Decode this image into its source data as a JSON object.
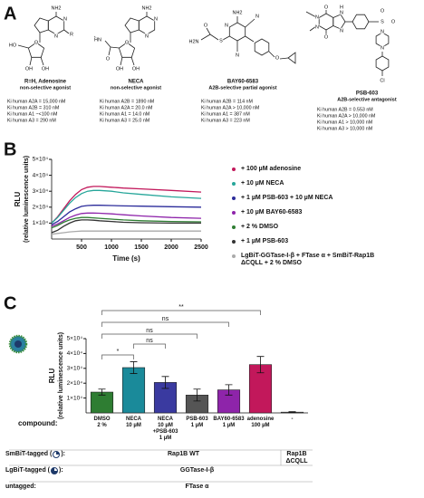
{
  "panel_labels": [
    "A",
    "B",
    "C"
  ],
  "compounds": [
    {
      "name": "R=H, Adenosine",
      "class": "non-selective agonist",
      "ki": [
        "Ki human A2A = 15,000 nM",
        "Ki human A2B = 310 nM",
        "Ki human A1 ~<100 nM",
        "Ki human A3 = 290 nM"
      ],
      "atoms": [
        "NH2",
        "N",
        "N",
        "R",
        "O",
        "HO",
        "OH",
        "OH"
      ]
    },
    {
      "name": "NECA",
      "class": "non-selective agonist",
      "ki": [
        "Ki human A2B = 1890 nM",
        "Ki human A2A = 20.0 nM",
        "Ki human A1 = 14.0 nM",
        "Ki human A3 = 25.0 nM"
      ],
      "atoms": [
        "NH2",
        "N",
        "N",
        "HN",
        "O",
        "O",
        "OH",
        "OH"
      ]
    },
    {
      "name": "BAY60-6583",
      "class": "A2B-selective partial agonist",
      "ki": [
        "Ki human A2B = 114 nM",
        "Ki human A2A > 10,000 nM",
        "Ki human A1 = 387 nM",
        "Ki human A3 = 223 nM"
      ],
      "atoms": [
        "NH2",
        "N",
        "H2N",
        "O",
        "S",
        "N",
        "N",
        "O"
      ]
    },
    {
      "name": "PSB-603",
      "class": "A2B-selective antagonist",
      "ki": [
        "Ki human A2B = 0.553 nM",
        "Ki human A2A > 10,000 nM",
        "Ki human A1 > 10,000 nM",
        "Ki human A3 > 10,000 nM"
      ],
      "atoms": [
        "O",
        "N",
        "N",
        "O",
        "N",
        "H",
        "N",
        "O",
        "S",
        "O",
        "N",
        "N",
        "Cl"
      ]
    }
  ],
  "chart_data": [
    {
      "type": "line",
      "ylabel": "RLU",
      "ylabel_sub": "(relative luminescence units)",
      "xlabel": "Time (s)",
      "x": [
        0,
        100,
        200,
        300,
        400,
        500,
        600,
        700,
        800,
        1000,
        1200,
        1500,
        2000,
        2500
      ],
      "xlim": [
        0,
        2500
      ],
      "xticks": [
        500,
        1000,
        1500,
        2000,
        2500
      ],
      "ylim": [
        0,
        50000
      ],
      "yticks": [
        {
          "value": 10000,
          "label": "1×10⁴"
        },
        {
          "value": 20000,
          "label": "2×10⁴"
        },
        {
          "value": 30000,
          "label": "3×10⁴"
        },
        {
          "value": 40000,
          "label": "4×10⁴"
        },
        {
          "value": 50000,
          "label": "5×10⁴"
        }
      ],
      "series": [
        {
          "name": "+ 100 µM adenosine",
          "color": "#c2185b",
          "values": [
            10000,
            14000,
            19000,
            24000,
            28000,
            31000,
            32500,
            33000,
            33000,
            32500,
            32000,
            31500,
            30500,
            29500
          ]
        },
        {
          "name": "+ 10 µM NECA",
          "color": "#26a69a",
          "values": [
            10000,
            13500,
            18000,
            22500,
            26000,
            28500,
            30000,
            30500,
            30500,
            30000,
            29000,
            28000,
            26500,
            25500
          ]
        },
        {
          "name": "+ 1 µM PSB-603 + 10 µM NECA",
          "color": "#2b2b9a",
          "values": [
            9000,
            11000,
            14000,
            17000,
            19000,
            20500,
            21000,
            21200,
            21200,
            21000,
            20800,
            20600,
            20300,
            20000
          ]
        },
        {
          "name": "+ 10 µM BAY60-6583",
          "color": "#8e24aa",
          "values": [
            8000,
            9500,
            11500,
            13500,
            15000,
            16000,
            16300,
            16300,
            16200,
            15800,
            15200,
            14500,
            13500,
            13000
          ]
        },
        {
          "name": "+ 2 % DMSO",
          "color": "#2e7d32",
          "values": [
            7000,
            8500,
            10500,
            12000,
            13000,
            13500,
            13500,
            13300,
            13000,
            12500,
            12000,
            11500,
            11000,
            10800
          ]
        },
        {
          "name": "+ 1 µM PSB-603",
          "color": "#333333",
          "values": [
            4000,
            5500,
            8000,
            10000,
            11500,
            12000,
            12000,
            11800,
            11500,
            11000,
            10500,
            10200,
            10000,
            10000
          ]
        },
        {
          "name": "LgBiT-GGTase-I-β + FTase α + SmBiT-Rap1B ΔCQLL + 2 % DMSO",
          "color": "#aaaaaa",
          "values": [
            3000,
            3500,
            4000,
            4500,
            4800,
            5000,
            5000,
            5000,
            5000,
            5000,
            5000,
            5000,
            5000,
            5000
          ]
        }
      ]
    },
    {
      "type": "bar",
      "ylabel": "RLU",
      "ylabel_sub": "(relative luminescence units)",
      "xlabel": "compound:",
      "categories": [
        "DMSO\n2 %",
        "NECA\n10 µM",
        "NECA\n10 µM\n+PSB-603\n1 µM",
        "PSB-603\n1 µM",
        "BAY60-6583\n1 µM",
        "adenosine\n100 µM",
        "-"
      ],
      "values": [
        14000,
        30500,
        20500,
        12000,
        15500,
        32500,
        500
      ],
      "errors": [
        2000,
        4000,
        4000,
        4000,
        3500,
        5500,
        300
      ],
      "colors": [
        "#2e7d32",
        "#1a8a9a",
        "#3a3aa0",
        "#555555",
        "#8e24aa",
        "#c2185b",
        "#777777"
      ],
      "ylim": [
        0,
        50000
      ],
      "yticks": [
        {
          "value": 10000,
          "label": "1×10⁴"
        },
        {
          "value": 20000,
          "label": "2×10⁴"
        },
        {
          "value": 30000,
          "label": "3×10⁴"
        },
        {
          "value": 40000,
          "label": "4×10⁴"
        },
        {
          "value": 50000,
          "label": "5×10⁴"
        }
      ],
      "annotations": [
        "**",
        "ns",
        "ns",
        "ns",
        "*"
      ]
    }
  ],
  "assay_table": {
    "rows": [
      {
        "label": "SmBiT-tagged (",
        "label_end": "):",
        "values": [
          "Rap1B WT",
          "Rap1B\nΔCQLL"
        ]
      },
      {
        "label": "LgBiT-tagged (",
        "label_end": "):",
        "values": [
          "GGTase-I-β"
        ]
      },
      {
        "label": "untagged:",
        "values": [
          "FTase α"
        ]
      }
    ]
  }
}
